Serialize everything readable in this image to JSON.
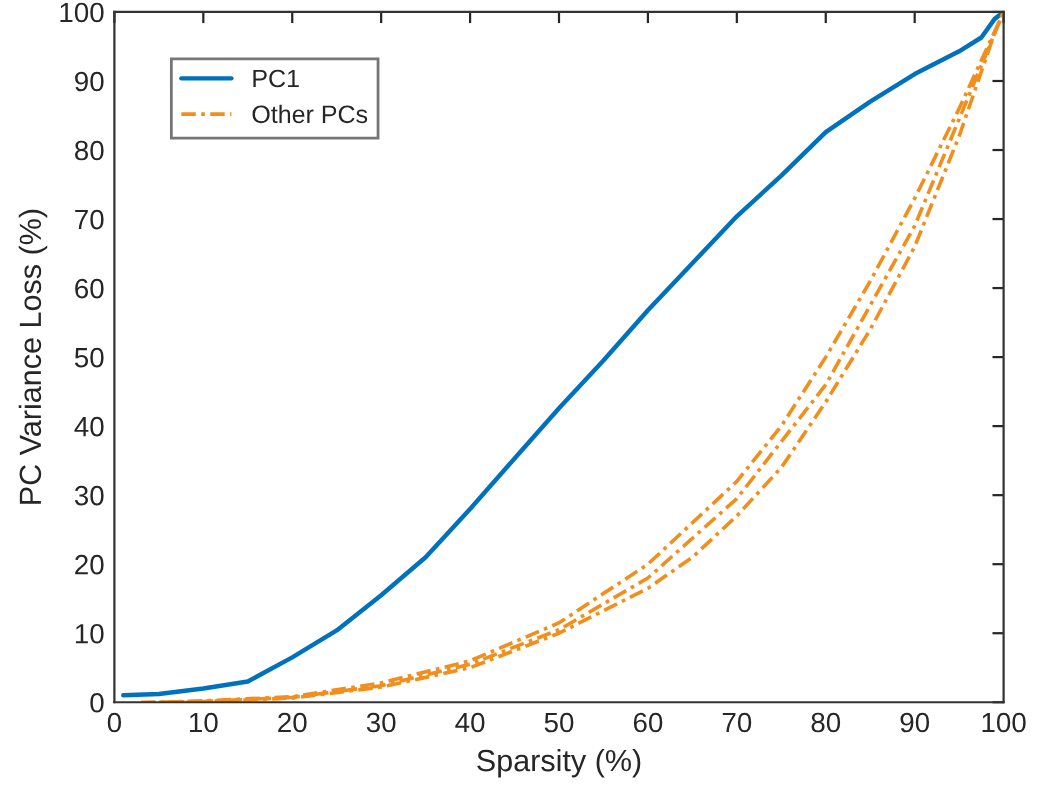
{
  "chart_data": {
    "type": "line",
    "xlabel": "Sparsity (%)",
    "ylabel": "PC Variance Loss (%)",
    "xlim": [
      0,
      100
    ],
    "ylim": [
      0,
      100
    ],
    "xticks": [
      0,
      10,
      20,
      30,
      40,
      50,
      60,
      70,
      80,
      90,
      100
    ],
    "yticks": [
      0,
      10,
      20,
      30,
      40,
      50,
      60,
      70,
      80,
      90,
      100
    ],
    "grid": false,
    "legend": "top left",
    "marker": "none",
    "series": [
      {
        "name": "PC1",
        "color": "#0072bd",
        "line_style": "solid",
        "x": [
          1,
          5,
          10,
          15,
          20,
          25,
          30,
          35,
          40,
          45,
          50,
          55,
          60,
          65,
          70,
          75,
          80,
          85,
          90,
          95,
          97.5,
          99,
          100
        ],
        "values": [
          1,
          1.2,
          2,
          3,
          6.5,
          10.4,
          15.5,
          21,
          28,
          35.3,
          42.6,
          49.5,
          56.8,
          63.6,
          70.4,
          76.3,
          82.6,
          87,
          91,
          94.3,
          96.3,
          99,
          100
        ]
      },
      {
        "name": "Other PCs",
        "color": "#f28e1c",
        "line_style": "dashed",
        "x": [
          3,
          10,
          20,
          30,
          40,
          50,
          60,
          70,
          80,
          90,
          100
        ],
        "values": [
          0,
          0.1,
          0.7,
          2.4,
          5.5,
          10.5,
          18,
          29.5,
          46,
          69,
          100
        ]
      },
      {
        "color": "#f28e1c",
        "line_style": "dashed",
        "x": [
          5,
          10,
          20,
          30,
          40,
          50,
          60,
          65,
          70,
          75,
          80,
          85,
          90,
          95,
          100
        ],
        "values": [
          0,
          0.2,
          0.8,
          2.8,
          6,
          11.5,
          20,
          26,
          32,
          40,
          50,
          61,
          73,
          86,
          100
        ]
      },
      {
        "color": "#f28e1c",
        "line_style": "dashed",
        "x": [
          8,
          10,
          20,
          30,
          40,
          50,
          60,
          65,
          70,
          75,
          80,
          85,
          90,
          95,
          99
        ],
        "values": [
          0,
          0.1,
          0.6,
          2.2,
          5,
          10,
          16.5,
          21,
          27,
          34,
          43.5,
          54,
          66,
          82,
          97
        ]
      }
    ]
  }
}
